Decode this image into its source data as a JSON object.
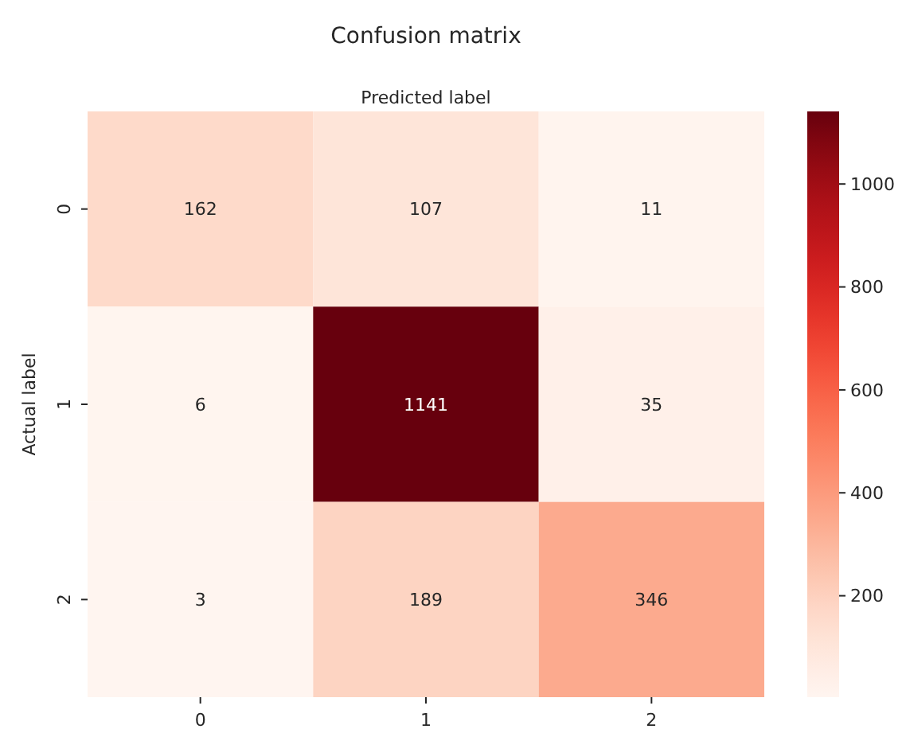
{
  "chart_data": {
    "type": "heatmap",
    "title": "Confusion matrix",
    "xlabel": "Predicted label",
    "ylabel": "Actual label",
    "categories": [
      "0",
      "1",
      "2"
    ],
    "y_categories": [
      "0",
      "1",
      "2"
    ],
    "cells": [
      [
        162,
        107,
        11
      ],
      [
        6,
        1141,
        35
      ],
      [
        3,
        189,
        346
      ]
    ],
    "data_labels": true,
    "clim": [
      3,
      1141
    ],
    "cticks": [
      200,
      400,
      600,
      800,
      1000
    ]
  }
}
